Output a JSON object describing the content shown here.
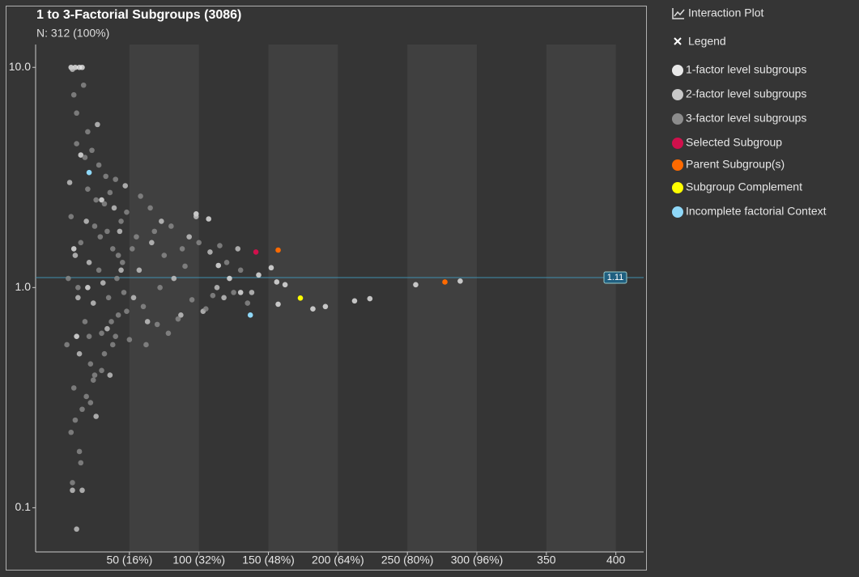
{
  "chart_data": {
    "type": "scatter",
    "title": "1 to 3-Factorial Subgroups (3086)",
    "subtitle": "N: 312 (100%)",
    "buttons": [
      "Interaction Plot",
      "Legend"
    ],
    "log_y": true,
    "xlim": [
      -17.5,
      420
    ],
    "ylim": [
      0.063,
      12.7
    ],
    "xticks": [
      {
        "value": 50,
        "label": "50 (16%)"
      },
      {
        "value": 100,
        "label": "100 (32%)"
      },
      {
        "value": 150,
        "label": "150 (48%)"
      },
      {
        "value": 200,
        "label": "200 (64%)"
      },
      {
        "value": 250,
        "label": "250 (80%)"
      },
      {
        "value": 300,
        "label": "300 (96%)"
      },
      350,
      400
    ],
    "yticks": [
      {
        "value": 10,
        "label": "10.0"
      },
      {
        "value": 1,
        "label": "1.0"
      },
      0.1
    ],
    "bands": [
      [
        50,
        100
      ],
      [
        150,
        200
      ],
      [
        250,
        300
      ],
      [
        350,
        400
      ]
    ],
    "reference_line": {
      "value": 1.11,
      "label": "1.11"
    },
    "series": [
      {
        "name": "1-factor level subgroups",
        "color": "#e8e8e8",
        "x": [
          8,
          11,
          14,
          16,
          107,
          98,
          114,
          143,
          152,
          156,
          162,
          157,
          182,
          191,
          212,
          223,
          256,
          288,
          122,
          130,
          10,
          20,
          30,
          12,
          15
        ],
        "y": [
          10,
          10,
          10,
          10,
          2.05,
          2.16,
          1.26,
          1.14,
          1.23,
          1.06,
          1.03,
          0.84,
          0.8,
          0.82,
          0.87,
          0.89,
          1.03,
          1.07,
          1.1,
          0.95,
          1.5,
          1.0,
          2.5,
          0.6,
          4.0
        ]
      },
      {
        "name": "2-factor level subgroups",
        "color": "#c8c8c8",
        "x": [
          7,
          11,
          14,
          19,
          24,
          27,
          31,
          36,
          43,
          47,
          53,
          57,
          63,
          66,
          73,
          82,
          87,
          93,
          98,
          103,
          108,
          113,
          118,
          128,
          138,
          9,
          16,
          13,
          21,
          26,
          34,
          39,
          44,
          9,
          12
        ],
        "y": [
          3.0,
          1.4,
          0.5,
          2.0,
          0.85,
          5.5,
          1.05,
          0.4,
          1.8,
          2.9,
          0.9,
          1.2,
          0.7,
          1.6,
          2.0,
          1.1,
          0.75,
          1.7,
          2.1,
          0.78,
          1.45,
          1.0,
          0.9,
          1.5,
          0.95,
          9.8,
          0.12,
          0.9,
          1.3,
          0.26,
          0.65,
          2.3,
          1.2,
          0.12,
          0.08
        ]
      },
      {
        "name": "3-factor level subgroups",
        "color": "#8c8c8c",
        "x": [
          5,
          8,
          10,
          12,
          15,
          18,
          20,
          22,
          25,
          28,
          30,
          32,
          35,
          38,
          40,
          42,
          45,
          48,
          50,
          55,
          60,
          65,
          70,
          75,
          80,
          85,
          90,
          95,
          100,
          110,
          120,
          8,
          12,
          16,
          20,
          24,
          28,
          32,
          36,
          40,
          44,
          48,
          52,
          6,
          10,
          14,
          18,
          22,
          26,
          30,
          34,
          38,
          42,
          46,
          9,
          13,
          17,
          21,
          25,
          29,
          33,
          37,
          41,
          58,
          62,
          68,
          72,
          78,
          88,
          105,
          115,
          125,
          130,
          135,
          11,
          15,
          19,
          23
        ],
        "y": [
          0.55,
          2.1,
          0.35,
          4.5,
          1.6,
          0.7,
          2.8,
          0.45,
          1.9,
          1.2,
          0.62,
          2.4,
          0.9,
          1.5,
          3.1,
          0.75,
          1.3,
          2.2,
          0.58,
          1.7,
          0.82,
          2.3,
          0.68,
          1.4,
          1.9,
          0.72,
          1.25,
          0.88,
          1.6,
          0.92,
          1.3,
          0.22,
          6.2,
          0.28,
          5.1,
          0.38,
          3.6,
          0.5,
          2.7,
          0.6,
          2.0,
          0.78,
          1.5,
          1.1,
          7.5,
          0.18,
          3.9,
          0.3,
          2.5,
          0.42,
          1.8,
          0.55,
          1.4,
          0.95,
          0.13,
          1.0,
          8.3,
          0.6,
          0.4,
          1.7,
          3.2,
          0.7,
          1.1,
          2.6,
          0.55,
          1.8,
          1.0,
          0.62,
          1.5,
          0.8,
          1.55,
          0.95,
          1.2,
          0.85,
          0.25,
          0.16,
          0.32,
          4.2
        ]
      },
      {
        "name": "Selected Subgroup",
        "color": "#d0104c",
        "x": [
          141
        ],
        "y": [
          1.45
        ]
      },
      {
        "name": "Parent Subgroup(s)",
        "color": "#ff6a00",
        "x": [
          157,
          277
        ],
        "y": [
          1.48,
          1.06
        ]
      },
      {
        "name": "Subgroup Complement",
        "color": "#ffff00",
        "x": [
          173
        ],
        "y": [
          0.896
        ]
      },
      {
        "name": "Incomplete factorial Context",
        "color": "#8fd8f8",
        "x": [
          137,
          21
        ],
        "y": [
          0.75,
          3.33
        ]
      }
    ]
  }
}
